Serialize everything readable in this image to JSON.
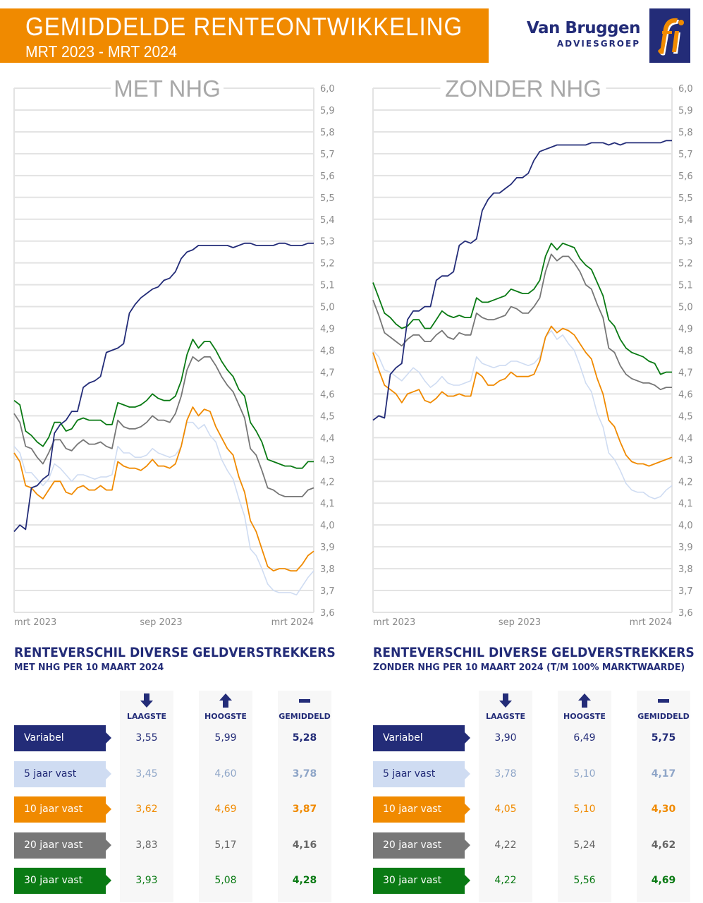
{
  "header": {
    "title": "GEMIDDELDE RENTEONTWIKKELING",
    "subtitle": "MRT 2023 - MRT 2024",
    "logo_name": "Van Bruggen",
    "logo_sub": "ADVIESGROEP",
    "brand_orange": "#f08a00",
    "brand_navy": "#232c78"
  },
  "colors": {
    "variabel": "#232c78",
    "vast5": "#cfdcf2",
    "vast10": "#f08a00",
    "vast20": "#777777",
    "vast30": "#0a7a14"
  },
  "chart_data": [
    {
      "type": "line",
      "title": "MET NHG",
      "xlabel": "",
      "ylabel": "",
      "x_tick_labels": [
        "mrt 2023",
        "sep 2023",
        "mrt 2024"
      ],
      "y_tick_labels": [
        "6,0",
        "5,9",
        "5,8",
        "5,7",
        "5,6",
        "5,5",
        "5,4",
        "5,3",
        "5,2",
        "5,1",
        "5,0",
        "4,9",
        "4,8",
        "4,7",
        "4,6",
        "4,5",
        "4,4",
        "4,3",
        "4,2",
        "4,1",
        "4,0",
        "3,9",
        "3,8",
        "3,7",
        "3,6"
      ],
      "ylim": [
        3.6,
        6.0
      ],
      "grid": true,
      "legend": "none",
      "series": [
        {
          "name": "Variabel",
          "key": "variabel",
          "values": [
            3.97,
            4.0,
            3.98,
            4.17,
            4.18,
            4.21,
            4.23,
            4.42,
            4.46,
            4.48,
            4.52,
            4.52,
            4.63,
            4.65,
            4.66,
            4.68,
            4.79,
            4.8,
            4.81,
            4.83,
            4.97,
            5.01,
            5.04,
            5.06,
            5.08,
            5.09,
            5.12,
            5.13,
            5.16,
            5.22,
            5.25,
            5.26,
            5.28,
            5.28,
            5.28,
            5.28,
            5.28,
            5.28,
            5.27,
            5.28,
            5.29,
            5.29,
            5.28,
            5.28,
            5.28,
            5.28,
            5.29,
            5.29,
            5.28,
            5.28,
            5.28,
            5.29,
            5.29
          ]
        },
        {
          "name": "5 jaar vast",
          "key": "vast5",
          "values": [
            4.36,
            4.33,
            4.24,
            4.24,
            4.21,
            4.18,
            4.21,
            4.28,
            4.26,
            4.23,
            4.2,
            4.23,
            4.23,
            4.22,
            4.21,
            4.22,
            4.22,
            4.23,
            4.36,
            4.33,
            4.33,
            4.31,
            4.31,
            4.32,
            4.35,
            4.33,
            4.32,
            4.31,
            4.32,
            4.36,
            4.47,
            4.47,
            4.44,
            4.46,
            4.41,
            4.38,
            4.3,
            4.25,
            4.21,
            4.12,
            4.04,
            3.89,
            3.86,
            3.8,
            3.73,
            3.7,
            3.69,
            3.69,
            3.69,
            3.68,
            3.72,
            3.76,
            3.79
          ]
        },
        {
          "name": "10 jaar vast",
          "key": "vast10",
          "values": [
            4.33,
            4.29,
            4.18,
            4.17,
            4.14,
            4.12,
            4.16,
            4.2,
            4.2,
            4.15,
            4.14,
            4.17,
            4.18,
            4.16,
            4.16,
            4.18,
            4.16,
            4.16,
            4.29,
            4.27,
            4.26,
            4.26,
            4.25,
            4.27,
            4.3,
            4.27,
            4.27,
            4.26,
            4.28,
            4.36,
            4.48,
            4.54,
            4.5,
            4.53,
            4.52,
            4.45,
            4.4,
            4.35,
            4.32,
            4.22,
            4.15,
            4.02,
            3.97,
            3.89,
            3.81,
            3.79,
            3.8,
            3.8,
            3.79,
            3.79,
            3.82,
            3.86,
            3.88
          ]
        },
        {
          "name": "20 jaar vast",
          "key": "vast20",
          "values": [
            4.51,
            4.47,
            4.36,
            4.35,
            4.31,
            4.28,
            4.33,
            4.39,
            4.39,
            4.35,
            4.34,
            4.37,
            4.39,
            4.37,
            4.37,
            4.38,
            4.36,
            4.35,
            4.48,
            4.45,
            4.44,
            4.44,
            4.45,
            4.47,
            4.5,
            4.48,
            4.48,
            4.47,
            4.51,
            4.59,
            4.71,
            4.77,
            4.75,
            4.77,
            4.77,
            4.73,
            4.68,
            4.64,
            4.61,
            4.55,
            4.49,
            4.35,
            4.32,
            4.25,
            4.17,
            4.16,
            4.14,
            4.13,
            4.13,
            4.13,
            4.13,
            4.16,
            4.17
          ]
        },
        {
          "name": "30 jaar vast",
          "key": "vast30",
          "values": [
            4.57,
            4.55,
            4.43,
            4.41,
            4.38,
            4.36,
            4.4,
            4.47,
            4.47,
            4.43,
            4.44,
            4.48,
            4.49,
            4.48,
            4.48,
            4.48,
            4.46,
            4.46,
            4.56,
            4.55,
            4.54,
            4.54,
            4.55,
            4.57,
            4.6,
            4.58,
            4.57,
            4.57,
            4.59,
            4.66,
            4.78,
            4.85,
            4.81,
            4.84,
            4.84,
            4.8,
            4.75,
            4.71,
            4.68,
            4.62,
            4.59,
            4.47,
            4.43,
            4.38,
            4.3,
            4.29,
            4.28,
            4.27,
            4.27,
            4.26,
            4.26,
            4.29,
            4.29
          ]
        }
      ]
    },
    {
      "type": "line",
      "title": "ZONDER NHG",
      "xlabel": "",
      "ylabel": "",
      "x_tick_labels": [
        "mrt 2023",
        "sep 2023",
        "mrt 2024"
      ],
      "y_tick_labels": [
        "6,0",
        "5,9",
        "5,8",
        "5,7",
        "5,6",
        "5,5",
        "5,4",
        "5,3",
        "5,2",
        "5,1",
        "5,0",
        "4,9",
        "4,8",
        "4,7",
        "4,6",
        "4,5",
        "4,4",
        "4,3",
        "4,2",
        "4,1",
        "4,0",
        "3,9",
        "3,8",
        "3,7",
        "3,6"
      ],
      "ylim": [
        3.6,
        6.0
      ],
      "grid": true,
      "legend": "none",
      "series": [
        {
          "name": "Variabel",
          "key": "variabel",
          "values": [
            4.48,
            4.5,
            4.49,
            4.69,
            4.72,
            4.74,
            4.94,
            4.98,
            4.98,
            5.0,
            5.0,
            5.12,
            5.14,
            5.14,
            5.16,
            5.28,
            5.3,
            5.29,
            5.31,
            5.44,
            5.49,
            5.52,
            5.52,
            5.54,
            5.56,
            5.59,
            5.59,
            5.61,
            5.67,
            5.71,
            5.72,
            5.73,
            5.74,
            5.74,
            5.74,
            5.74,
            5.74,
            5.74,
            5.75,
            5.75,
            5.75,
            5.74,
            5.75,
            5.74,
            5.75,
            5.75,
            5.75,
            5.75,
            5.75,
            5.75,
            5.75,
            5.76,
            5.76
          ]
        },
        {
          "name": "5 jaar vast",
          "key": "vast5",
          "values": [
            4.8,
            4.77,
            4.71,
            4.7,
            4.68,
            4.66,
            4.69,
            4.72,
            4.7,
            4.66,
            4.63,
            4.65,
            4.68,
            4.65,
            4.64,
            4.64,
            4.65,
            4.66,
            4.77,
            4.74,
            4.73,
            4.72,
            4.73,
            4.73,
            4.75,
            4.75,
            4.74,
            4.73,
            4.74,
            4.77,
            4.86,
            4.89,
            4.85,
            4.87,
            4.83,
            4.8,
            4.73,
            4.65,
            4.61,
            4.51,
            4.45,
            4.33,
            4.3,
            4.25,
            4.19,
            4.16,
            4.15,
            4.15,
            4.13,
            4.12,
            4.13,
            4.16,
            4.18
          ]
        },
        {
          "name": "10 jaar vast",
          "key": "vast10",
          "values": [
            4.79,
            4.71,
            4.64,
            4.62,
            4.6,
            4.56,
            4.6,
            4.61,
            4.62,
            4.57,
            4.56,
            4.58,
            4.61,
            4.59,
            4.59,
            4.6,
            4.59,
            4.59,
            4.7,
            4.68,
            4.64,
            4.64,
            4.66,
            4.67,
            4.7,
            4.68,
            4.68,
            4.68,
            4.69,
            4.75,
            4.86,
            4.91,
            4.88,
            4.9,
            4.89,
            4.87,
            4.83,
            4.79,
            4.76,
            4.67,
            4.6,
            4.48,
            4.45,
            4.38,
            4.32,
            4.29,
            4.28,
            4.28,
            4.27,
            4.28,
            4.29,
            4.3,
            4.31
          ]
        },
        {
          "name": "20 jaar vast",
          "key": "vast20",
          "values": [
            5.03,
            4.96,
            4.88,
            4.86,
            4.84,
            4.82,
            4.85,
            4.87,
            4.87,
            4.84,
            4.84,
            4.87,
            4.89,
            4.86,
            4.85,
            4.88,
            4.87,
            4.87,
            4.97,
            4.95,
            4.94,
            4.94,
            4.95,
            4.96,
            5.0,
            4.99,
            4.97,
            4.97,
            5.0,
            5.04,
            5.16,
            5.24,
            5.21,
            5.23,
            5.23,
            5.2,
            5.16,
            5.1,
            5.08,
            5.01,
            4.95,
            4.81,
            4.79,
            4.73,
            4.69,
            4.67,
            4.66,
            4.65,
            4.65,
            4.64,
            4.62,
            4.63,
            4.63
          ]
        },
        {
          "name": "30 jaar vast",
          "key": "vast30",
          "values": [
            5.11,
            5.04,
            4.97,
            4.95,
            4.92,
            4.9,
            4.91,
            4.94,
            4.94,
            4.9,
            4.9,
            4.94,
            4.98,
            4.96,
            4.95,
            4.96,
            4.95,
            4.95,
            5.04,
            5.02,
            5.02,
            5.03,
            5.04,
            5.05,
            5.08,
            5.07,
            5.06,
            5.06,
            5.08,
            5.12,
            5.23,
            5.29,
            5.26,
            5.29,
            5.28,
            5.27,
            5.22,
            5.19,
            5.17,
            5.11,
            5.05,
            4.94,
            4.91,
            4.85,
            4.81,
            4.79,
            4.78,
            4.77,
            4.75,
            4.74,
            4.69,
            4.7,
            4.7
          ]
        }
      ]
    }
  ],
  "tables": [
    {
      "title": "RENTEVERSCHIL DIVERSE GELDVERSTREKKERS",
      "subtitle": "MET NHG PER 10 MAART 2024",
      "headers": {
        "low": "LAAGSTE",
        "high": "HOOGSTE",
        "avg": "GEMIDDELD"
      },
      "rows": [
        {
          "label": "Variabel",
          "low": "3,55",
          "high": "5,99",
          "avg": "5,28"
        },
        {
          "label": "5 jaar vast",
          "low": "3,45",
          "high": "4,60",
          "avg": "3,78"
        },
        {
          "label": "10 jaar vast",
          "low": "3,62",
          "high": "4,69",
          "avg": "3,87"
        },
        {
          "label": "20 jaar vast",
          "low": "3,83",
          "high": "5,17",
          "avg": "4,16"
        },
        {
          "label": "30 jaar vast",
          "low": "3,93",
          "high": "5,08",
          "avg": "4,28"
        }
      ]
    },
    {
      "title": "RENTEVERSCHIL DIVERSE GELDVERSTREKKERS",
      "subtitle": "ZONDER NHG PER 10 MAART 2024 (T/M 100% MARKTWAARDE)",
      "headers": {
        "low": "LAAGSTE",
        "high": "HOOGSTE",
        "avg": "GEMIDDELD"
      },
      "rows": [
        {
          "label": "Variabel",
          "low": "3,90",
          "high": "6,49",
          "avg": "5,75"
        },
        {
          "label": "5 jaar vast",
          "low": "3,78",
          "high": "5,10",
          "avg": "4,17"
        },
        {
          "label": "10 jaar vast",
          "low": "4,05",
          "high": "5,10",
          "avg": "4,30"
        },
        {
          "label": "20 jaar vast",
          "low": "4,22",
          "high": "5,24",
          "avg": "4,62"
        },
        {
          "label": "30 jaar vast",
          "low": "4,22",
          "high": "5,56",
          "avg": "4,69"
        }
      ]
    }
  ]
}
